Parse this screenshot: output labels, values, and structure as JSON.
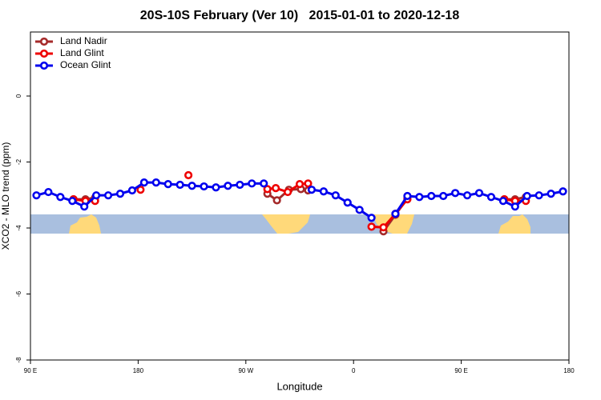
{
  "chart_data": {
    "type": "line",
    "title": "20S-10S February (Ver 10)   2015-01-01 to 2020-12-18",
    "x_label": "Longitude",
    "y_label": "XCO2 - MLO trend (ppm)",
    "xlim": [
      90,
      540
    ],
    "xticks": [
      {
        "value": 90,
        "label": "90 E"
      },
      180,
      {
        "value": 270,
        "label": "90 W"
      },
      {
        "value": 360,
        "label": "0"
      },
      {
        "value": 450,
        "label": "90 E"
      },
      {
        "value": 540,
        "label": "180"
      }
    ],
    "ylim": [
      -8,
      1.94
    ],
    "yticks": [
      -8,
      -6,
      -4,
      -2,
      0
    ],
    "legend": "top-left",
    "series": [
      {
        "name": "Land Nadir",
        "color": "#a52a2a",
        "x": [
          126,
          136,
          144,
          null,
          288,
          296,
          306,
          316,
          322,
          null,
          385,
          395,
          405,
          null,
          486,
          495,
          504
        ],
        "values": [
          -3.13,
          -3.13,
          -3.08,
          null,
          -2.96,
          -3.16,
          -2.84,
          -2.82,
          -2.86,
          null,
          -4.1,
          -3.6,
          -3.1,
          null,
          -3.13,
          -3.13,
          -3.06
        ]
      },
      {
        "name": "Land Glint",
        "color": "#ee0000",
        "x": [
          126,
          136,
          144,
          null,
          182,
          null,
          222,
          null,
          288,
          295,
          305,
          315,
          322,
          null,
          375,
          385,
          395,
          405,
          null,
          486,
          495,
          504
        ],
        "values": [
          -3.13,
          -3.18,
          -3.18,
          null,
          -2.84,
          null,
          -2.4,
          null,
          -2.82,
          -2.79,
          -2.91,
          -2.67,
          -2.65,
          null,
          -3.96,
          -3.98,
          -3.57,
          -3.13,
          null,
          -3.13,
          -3.18,
          -3.18
        ]
      },
      {
        "name": "Ocean Glint",
        "color": "#0000ee",
        "x": [
          95,
          105,
          115,
          125,
          135,
          145,
          155,
          165,
          175,
          185,
          195,
          205,
          215,
          225,
          235,
          245,
          255,
          265,
          275,
          285,
          null,
          325,
          335,
          345,
          355,
          365,
          375,
          null,
          395,
          405,
          415,
          425,
          435,
          445,
          455,
          465,
          475,
          485,
          495,
          505,
          515,
          525,
          535
        ],
        "values": [
          -3.01,
          -2.91,
          -3.06,
          -3.18,
          -3.35,
          -3.01,
          -3.01,
          -2.96,
          -2.86,
          -2.62,
          -2.62,
          -2.67,
          -2.69,
          -2.72,
          -2.74,
          -2.77,
          -2.72,
          -2.69,
          -2.65,
          -2.65,
          null,
          -2.84,
          -2.89,
          -3.01,
          -3.23,
          -3.45,
          -3.69,
          null,
          -3.57,
          -3.03,
          -3.06,
          -3.03,
          -3.03,
          -2.94,
          -3.01,
          -2.94,
          -3.06,
          -3.18,
          -3.35,
          -3.03,
          -3.01,
          -2.96,
          -2.89
        ]
      }
    ]
  }
}
